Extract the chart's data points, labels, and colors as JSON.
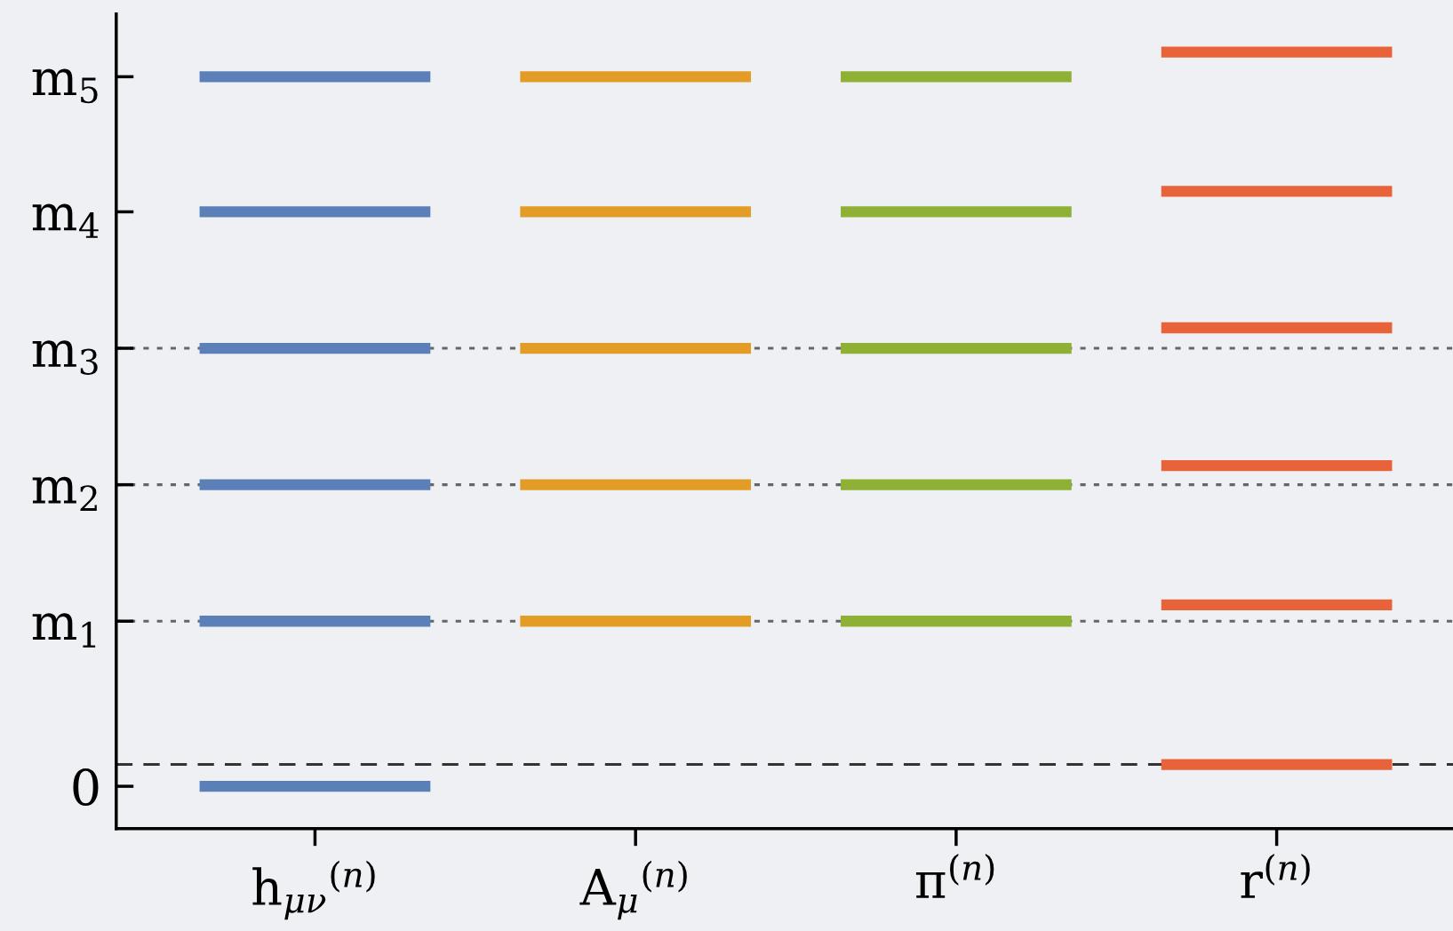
{
  "chart_data": {
    "type": "bar",
    "categories": [
      "h$_{μν}$$^{(n)}$",
      "A$_{μ}$$^{(n)}$",
      "π$^{(n)}$",
      "r$^{(n)}$"
    ],
    "ylim": [
      -0.31,
      5.66
    ],
    "yticks": [
      0,
      {
        "value": 1.21,
        "label": "m$_{1}$"
      },
      {
        "value": 2.21,
        "label": "m$_{2}$"
      },
      {
        "value": 3.21,
        "label": "m$_{3}$"
      },
      {
        "value": 4.21,
        "label": "m$_{4}$"
      },
      {
        "value": 5.2,
        "label": "m$_{5}$"
      }
    ],
    "series": [
      {
        "colors": [
          "#5b80b8",
          "#e39c25",
          "#8db035",
          "#e9633a"
        ],
        "base": [
          -0.04,
          null,
          null,
          0.12
        ],
        "values": [
          0.08,
          null,
          null,
          0.08
        ]
      },
      {
        "colors": [
          "#5b80b8",
          "#e39c25",
          "#8db035",
          "#e9633a"
        ],
        "base": [
          1.17,
          1.17,
          1.17,
          1.29
        ],
        "values": [
          0.08,
          0.08,
          0.08,
          0.08
        ]
      },
      {
        "colors": [
          "#5b80b8",
          "#e39c25",
          "#8db035",
          "#e9633a"
        ],
        "base": [
          2.17,
          2.17,
          2.17,
          2.31
        ],
        "values": [
          0.08,
          0.08,
          0.08,
          0.08
        ]
      },
      {
        "colors": [
          "#5b80b8",
          "#e39c25",
          "#8db035",
          "#e9633a"
        ],
        "base": [
          3.17,
          3.17,
          3.17,
          3.32
        ],
        "values": [
          0.08,
          0.08,
          0.08,
          0.08
        ]
      },
      {
        "colors": [
          "#5b80b8",
          "#e39c25",
          "#8db035",
          "#e9633a"
        ],
        "base": [
          4.17,
          4.17,
          4.17,
          4.32
        ],
        "values": [
          0.08,
          0.08,
          0.08,
          0.08
        ]
      },
      {
        "colors": [
          "#5b80b8",
          "#e39c25",
          "#8db035",
          "#e9633a"
        ],
        "base": [
          5.16,
          5.16,
          5.16,
          5.34
        ],
        "values": [
          0.08,
          0.08,
          0.08,
          0.08
        ]
      }
    ],
    "ref_lines": [
      {
        "axis": "y",
        "value": 0.16,
        "color": "#333333",
        "line_style": "dashed"
      },
      {
        "axis": "y",
        "value": 1.21,
        "color": "#666666",
        "line_style": "dotted"
      },
      {
        "axis": "y",
        "value": 2.21,
        "color": "#666666",
        "line_style": "dotted"
      },
      {
        "axis": "y",
        "value": 3.21,
        "color": "#666666",
        "line_style": "dotted"
      }
    ],
    "grid": false,
    "legend": false
  }
}
